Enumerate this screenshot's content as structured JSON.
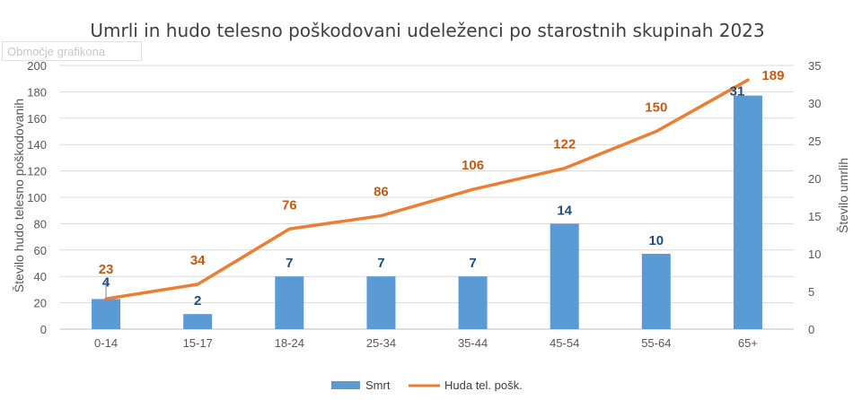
{
  "chart_data": {
    "type": "bar+line",
    "title": "Umrli in hudo telesno poškodovani udeleženci po starostnih skupinah 2023",
    "categories": [
      "0-14",
      "15-17",
      "18-24",
      "25-34",
      "35-44",
      "45-54",
      "55-64",
      "65+"
    ],
    "series": [
      {
        "name": "Smrt",
        "type": "bar",
        "axis": "right",
        "values": [
          4,
          2,
          7,
          7,
          7,
          14,
          10,
          31
        ],
        "color": "#5b9bd5"
      },
      {
        "name": "Huda tel. pošk.",
        "type": "line",
        "axis": "left",
        "values": [
          23,
          34,
          76,
          86,
          106,
          122,
          150,
          189
        ],
        "color": "#ed7d31"
      }
    ],
    "ylabel": "Število hudo telesno poškodovanih",
    "ylabel_right": "Število umrlih",
    "ylim": [
      0,
      200
    ],
    "ylim_right": [
      0,
      35
    ],
    "yticks": [
      0,
      20,
      40,
      60,
      80,
      100,
      120,
      140,
      160,
      180,
      200
    ],
    "yticks_right": [
      0,
      5,
      10,
      15,
      20,
      25,
      30,
      35
    ],
    "grid": true,
    "legend": "bottom",
    "bar_label_color": "#1f4e79",
    "line_label_color": "#c55a11"
  },
  "chart_area_hint": "Območje grafikona"
}
